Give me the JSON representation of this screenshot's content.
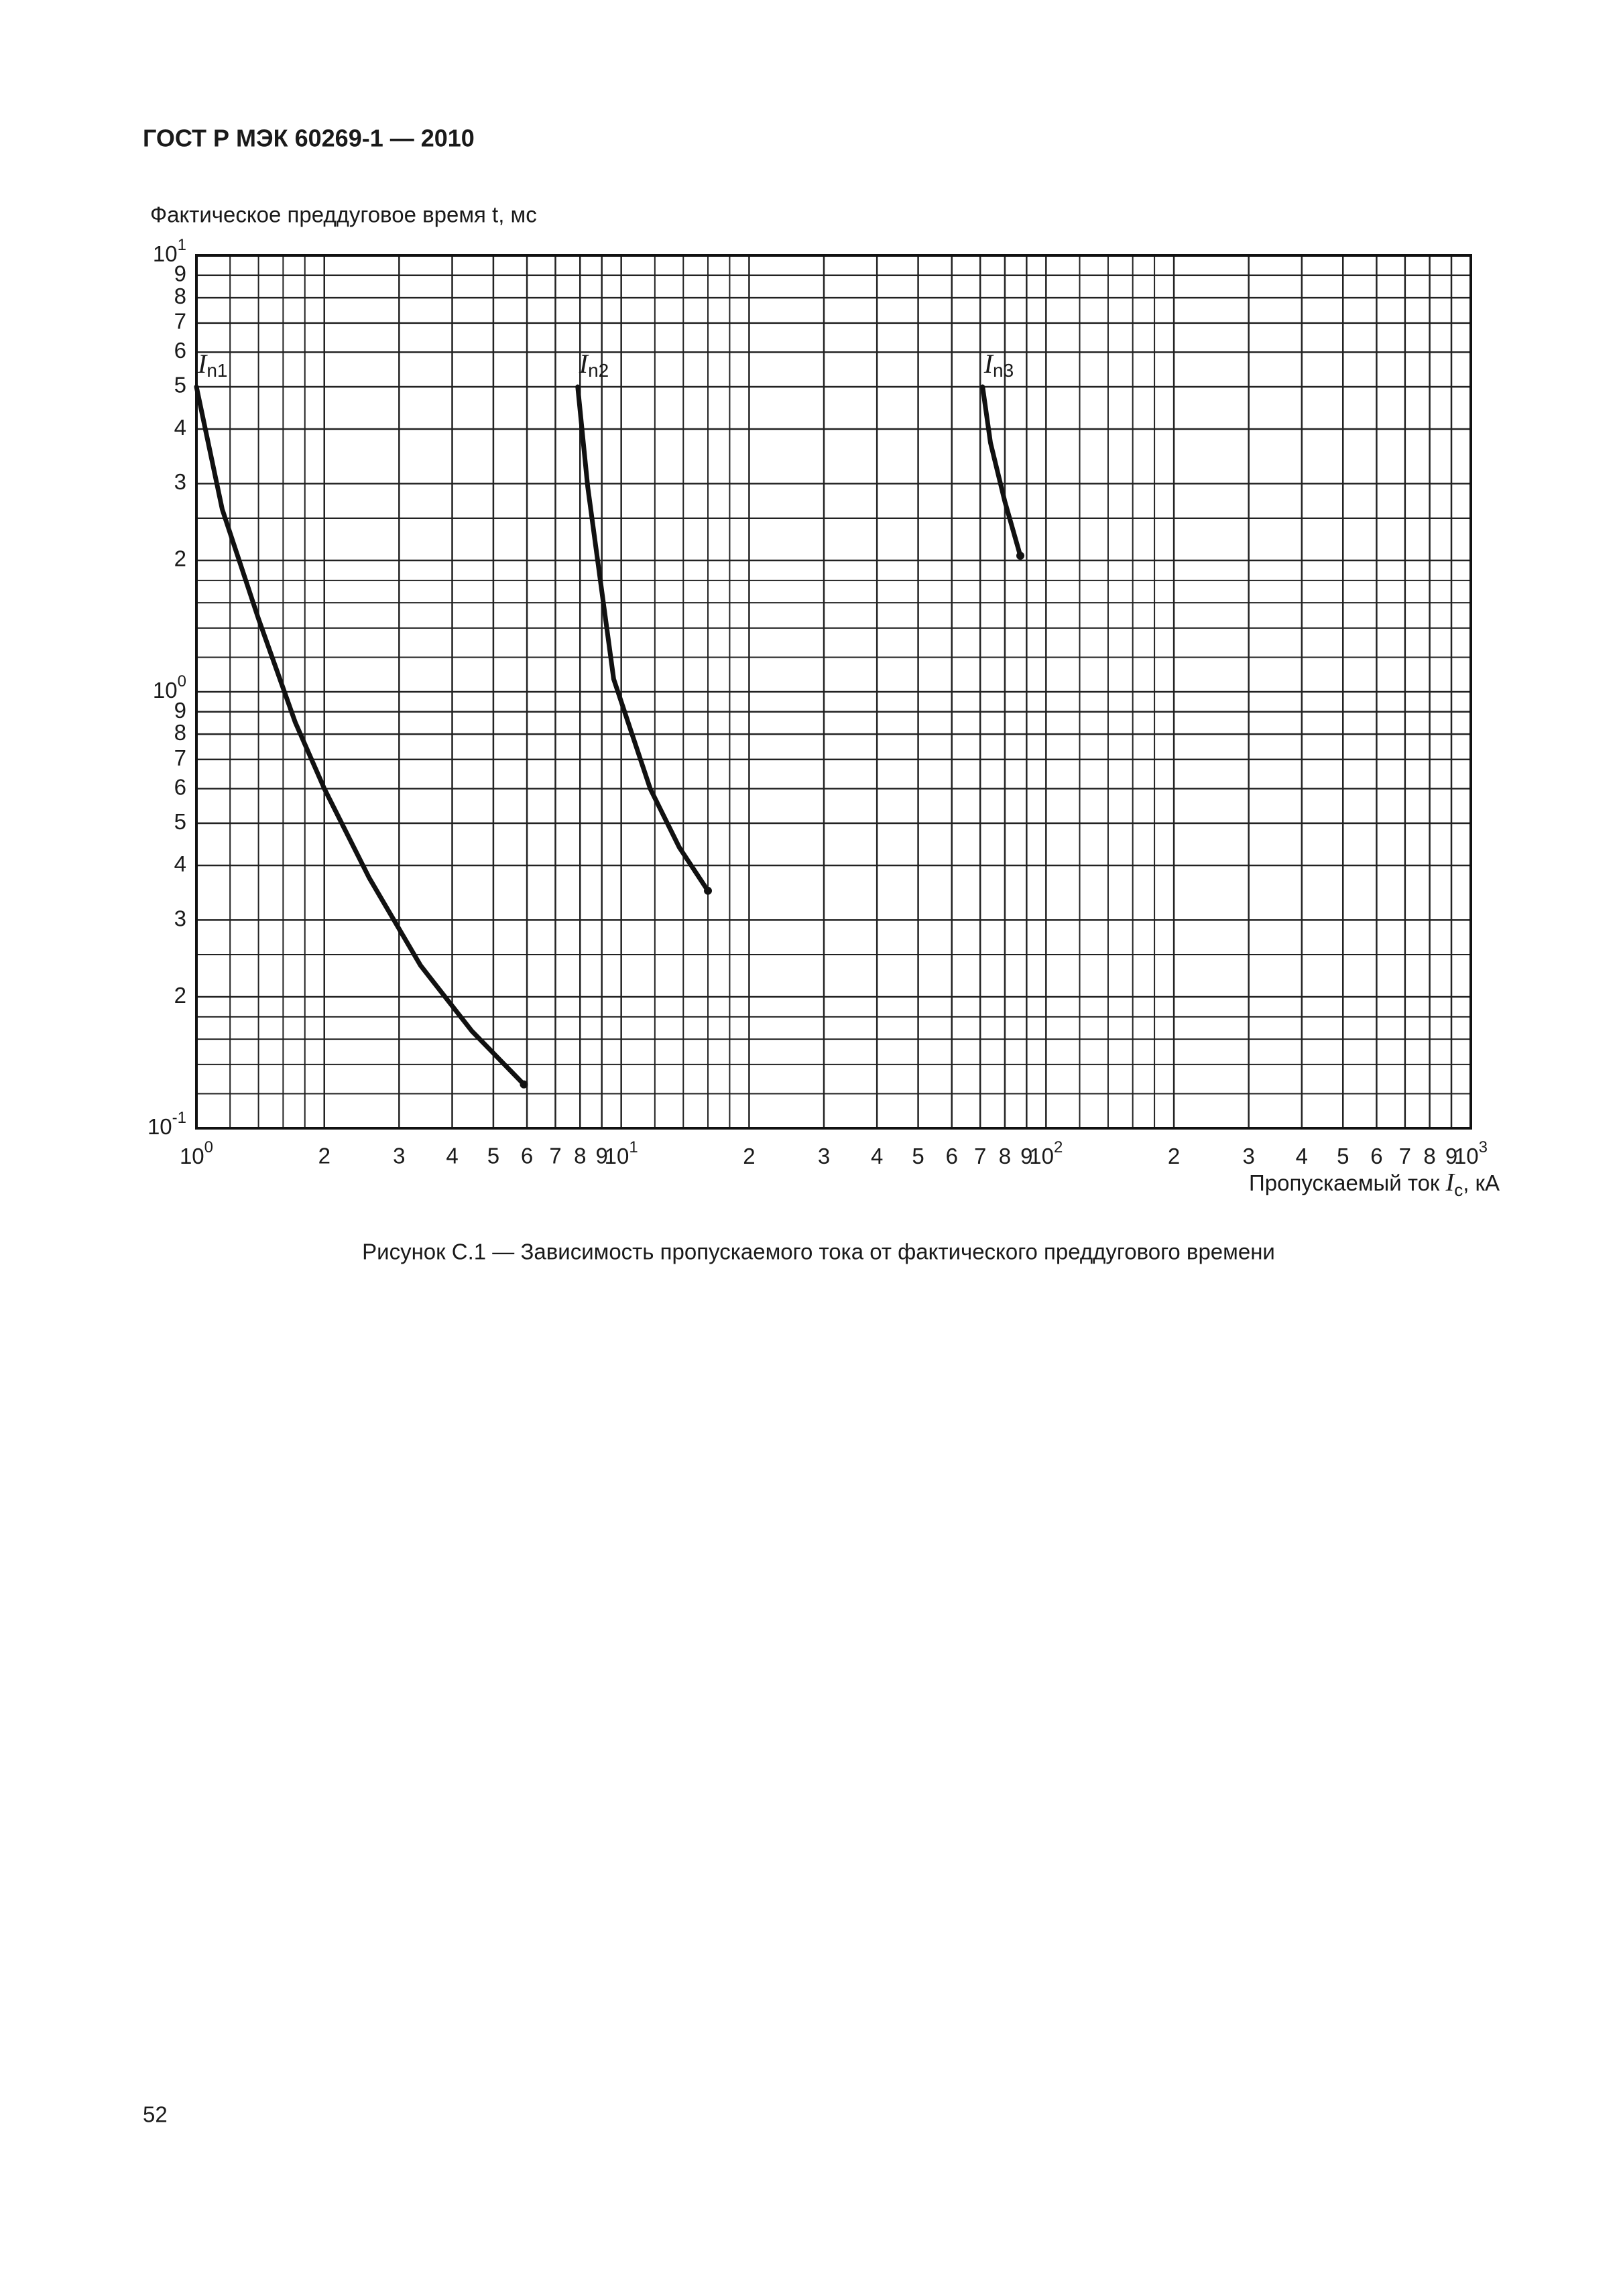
{
  "header": {
    "title": "ГОСТ Р МЭК 60269-1 — 2010"
  },
  "chart_data": {
    "type": "line",
    "log_x": true,
    "log_y": true,
    "grid": true,
    "ylabel": "Фактическое преддуговое время t, мс",
    "xlabel": {
      "text": "Пропускаемый ток ",
      "symbol": "I",
      "sub": "c",
      "unit": ", кА"
    },
    "xlim": [
      1,
      1000
    ],
    "ylim": [
      0.1,
      10
    ],
    "xticks": [
      {
        "value": 1,
        "label": "10",
        "sup": "0"
      },
      2,
      3,
      4,
      5,
      6,
      7,
      8,
      9,
      {
        "value": 10,
        "label": "10",
        "sup": "1"
      },
      {
        "value": 20,
        "label": "2"
      },
      {
        "value": 30,
        "label": "3"
      },
      {
        "value": 40,
        "label": "4"
      },
      {
        "value": 50,
        "label": "5"
      },
      {
        "value": 60,
        "label": "6"
      },
      {
        "value": 70,
        "label": "7"
      },
      {
        "value": 80,
        "label": "8"
      },
      {
        "value": 90,
        "label": "9"
      },
      {
        "value": 100,
        "label": "10",
        "sup": "2"
      },
      {
        "value": 200,
        "label": "2"
      },
      {
        "value": 300,
        "label": "3"
      },
      {
        "value": 400,
        "label": "4"
      },
      {
        "value": 500,
        "label": "5"
      },
      {
        "value": 600,
        "label": "6"
      },
      {
        "value": 700,
        "label": "7"
      },
      {
        "value": 800,
        "label": "8"
      },
      {
        "value": 900,
        "label": "9"
      },
      {
        "value": 1000,
        "label": "10",
        "sup": "3"
      }
    ],
    "yticks": [
      {
        "value": 0.1,
        "label": "10",
        "sup": "-1"
      },
      {
        "value": 0.2,
        "label": "2"
      },
      {
        "value": 0.3,
        "label": "3"
      },
      {
        "value": 0.4,
        "label": "4"
      },
      {
        "value": 0.5,
        "label": "5"
      },
      {
        "value": 0.6,
        "label": "6"
      },
      {
        "value": 0.7,
        "label": "7"
      },
      {
        "value": 0.8,
        "label": "8"
      },
      {
        "value": 0.9,
        "label": "9"
      },
      {
        "value": 1,
        "label": "10",
        "sup": "0"
      },
      2,
      3,
      4,
      5,
      6,
      7,
      8,
      9,
      {
        "value": 10,
        "label": "10",
        "sup": "1"
      }
    ],
    "xgrid_minor": [
      1.2,
      1.4,
      1.6,
      1.8,
      12,
      14,
      16,
      18,
      120,
      140,
      160,
      180
    ],
    "ygrid_minor": [
      0.12,
      0.14,
      0.16,
      0.18,
      0.25,
      1.2,
      1.4,
      1.6,
      1.8,
      2.5
    ],
    "series": [
      {
        "symbol": "I",
        "index": "n1",
        "color": "#111111",
        "x": [
          1,
          1.15,
          1.4,
          1.71,
          2,
          2.55,
          3.37,
          4.45,
          5.9
        ],
        "values": [
          5,
          2.62,
          1.47,
          0.85,
          0.6,
          0.375,
          0.236,
          0.167,
          0.126
        ]
      },
      {
        "symbol": "I",
        "index": "n2",
        "color": "#111111",
        "x": [
          7.9,
          8.34,
          8.8,
          9.6,
          11.7,
          13.7,
          16
        ],
        "values": [
          5,
          2.95,
          2,
          1.07,
          0.6,
          0.44,
          0.35
        ]
      },
      {
        "symbol": "I",
        "index": "n3",
        "color": "#111111",
        "x": [
          70.9,
          74,
          80,
          87
        ],
        "values": [
          5,
          3.72,
          2.73,
          2.05
        ]
      }
    ]
  },
  "caption": "Рисунок С.1 — Зависимость пропускаемого тока от фактического преддугового времени",
  "page_number": "52"
}
